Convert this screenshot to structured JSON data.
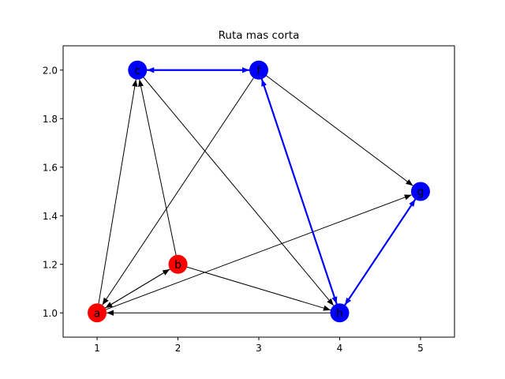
{
  "chart_data": {
    "type": "network-graph",
    "title": "Ruta mas corta",
    "xlim": [
      0.58,
      5.42
    ],
    "ylim": [
      0.9,
      2.1
    ],
    "x_ticks": [
      "1",
      "2",
      "3",
      "4",
      "5"
    ],
    "y_ticks": [
      "1.0",
      "1.2",
      "1.4",
      "1.6",
      "1.8",
      "2.0"
    ],
    "grid": false,
    "colors": {
      "red": "#ff0000",
      "blue": "#0000ff",
      "edge": "#000000",
      "highlight": "#0000ff"
    },
    "nodes": [
      {
        "id": "a",
        "x": 1.0,
        "y": 1.0,
        "color": "red"
      },
      {
        "id": "b",
        "x": 2.0,
        "y": 1.2,
        "color": "red"
      },
      {
        "id": "c",
        "x": 1.5,
        "y": 2.0,
        "color": "blue"
      },
      {
        "id": "f",
        "x": 3.0,
        "y": 2.0,
        "color": "blue"
      },
      {
        "id": "g",
        "x": 5.0,
        "y": 1.5,
        "color": "blue"
      },
      {
        "id": "h",
        "x": 4.0,
        "y": 1.0,
        "color": "blue"
      }
    ],
    "edges": [
      {
        "from": "a",
        "to": "b",
        "highlight": false
      },
      {
        "from": "a",
        "to": "c",
        "highlight": false
      },
      {
        "from": "a",
        "to": "g",
        "highlight": false
      },
      {
        "from": "b",
        "to": "a",
        "highlight": false
      },
      {
        "from": "b",
        "to": "c",
        "highlight": false
      },
      {
        "from": "b",
        "to": "h",
        "highlight": false
      },
      {
        "from": "c",
        "to": "h",
        "highlight": false
      },
      {
        "from": "f",
        "to": "a",
        "highlight": false
      },
      {
        "from": "f",
        "to": "g",
        "highlight": false
      },
      {
        "from": "h",
        "to": "a",
        "highlight": false
      },
      {
        "from": "c",
        "to": "f",
        "highlight": true
      },
      {
        "from": "f",
        "to": "c",
        "highlight": true
      },
      {
        "from": "f",
        "to": "h",
        "highlight": true
      },
      {
        "from": "h",
        "to": "f",
        "highlight": true
      },
      {
        "from": "h",
        "to": "g",
        "highlight": true
      },
      {
        "from": "g",
        "to": "h",
        "highlight": true
      }
    ]
  }
}
